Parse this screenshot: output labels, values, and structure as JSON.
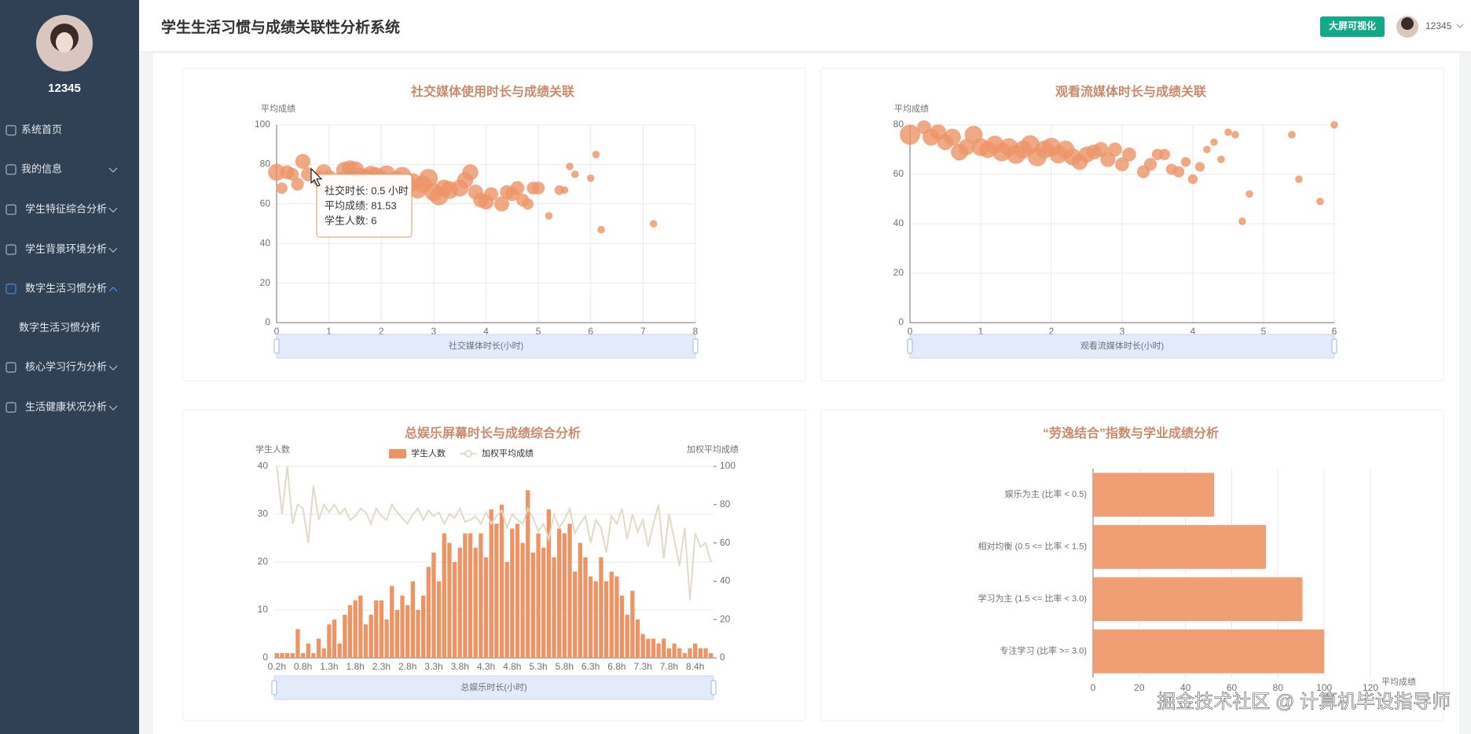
{
  "sidebar": {
    "username": "12345",
    "menu": [
      "系统首页",
      "我的信息",
      "学生特征综合分析",
      "学生背景环境分析",
      "数字生活习惯分析",
      "核心学习行为分析",
      "生活健康状况分析"
    ],
    "submenu": "数字生活习惯分析"
  },
  "header": {
    "title": "学生生活习惯与成绩关联性分析系统",
    "button": "大屏可视化",
    "username": "12345"
  },
  "watermark": "掘金技术社区 @ 计算机毕设指导师",
  "chart_data": [
    {
      "type": "scatter",
      "title": "社交媒体使用时长与成绩关联",
      "y_label": "平均成绩",
      "x_label": "社交媒体时长(小时)",
      "color": "#ec9466",
      "grid": true,
      "xlim": [
        0,
        8
      ],
      "xticks": [
        0,
        1,
        2,
        3,
        4,
        5,
        6,
        7,
        8
      ],
      "ylim": [
        0,
        100
      ],
      "yticks": [
        0,
        20,
        40,
        60,
        80,
        100
      ],
      "x": [
        0,
        0.1,
        0.2,
        0.3,
        0.4,
        0.5,
        0.6,
        0.8,
        0.9,
        1.0,
        1.2,
        1.3,
        1.4,
        1.5,
        1.6,
        1.7,
        1.8,
        1.9,
        2.0,
        2.1,
        2.2,
        2.3,
        2.4,
        2.5,
        2.6,
        2.7,
        2.8,
        2.9,
        3.0,
        3.1,
        3.2,
        3.3,
        3.5,
        3.6,
        3.7,
        3.8,
        3.9,
        4.0,
        4.1,
        4.3,
        4.4,
        4.5,
        4.6,
        4.7,
        4.8,
        4.9,
        5.0,
        5.2,
        5.4,
        5.5,
        5.6,
        5.7,
        6.0,
        6.1,
        6.2,
        7.2
      ],
      "values": [
        76,
        68,
        76,
        75,
        70,
        81.53,
        75,
        73,
        76,
        73,
        72,
        77,
        78,
        77,
        74,
        73,
        75,
        74,
        72,
        75,
        71,
        72,
        74,
        70,
        71,
        67,
        70,
        73,
        66,
        64,
        68,
        67,
        68,
        72,
        76,
        66,
        62,
        61,
        65,
        60,
        66,
        65,
        68,
        62,
        60,
        68,
        68,
        54,
        67,
        67,
        79,
        75,
        73,
        85,
        47,
        50
      ],
      "sizes": [
        8,
        3,
        5,
        4,
        4,
        6,
        5,
        6,
        7,
        7,
        6,
        8,
        7,
        9,
        8,
        9,
        8,
        9,
        10,
        9,
        10,
        9,
        10,
        10,
        9,
        8,
        9,
        10,
        9,
        10,
        8,
        9,
        8,
        7,
        7,
        6,
        6,
        6,
        5,
        6,
        5,
        5,
        5,
        4,
        3,
        4,
        4,
        1,
        2,
        1,
        1,
        1,
        1,
        1,
        1,
        1
      ],
      "tooltip": [
        "社交时长: 0.5 小时",
        "平均成绩: 81.53",
        "学生人数: 6"
      ]
    },
    {
      "type": "scatter",
      "title": "观看流媒体时长与成绩关联",
      "y_label": "平均成绩",
      "x_label": "观看流媒体时长(小时)",
      "color": "#ec9466",
      "grid": true,
      "xlim": [
        0,
        6
      ],
      "xticks": [
        0,
        1,
        2,
        3,
        4,
        5,
        6
      ],
      "ylim": [
        0,
        80
      ],
      "yticks": [
        0,
        20,
        40,
        60,
        80
      ],
      "x": [
        0,
        0.2,
        0.3,
        0.4,
        0.5,
        0.6,
        0.7,
        0.8,
        0.9,
        1.0,
        1.1,
        1.2,
        1.3,
        1.4,
        1.5,
        1.6,
        1.7,
        1.8,
        1.9,
        2.0,
        2.1,
        2.2,
        2.3,
        2.4,
        2.5,
        2.6,
        2.7,
        2.8,
        2.9,
        3.0,
        3.1,
        3.3,
        3.4,
        3.5,
        3.6,
        3.7,
        3.8,
        3.9,
        4.0,
        4.1,
        4.2,
        4.3,
        4.4,
        4.5,
        4.6,
        4.7,
        4.8,
        5.4,
        5.5,
        5.8,
        6.0
      ],
      "values": [
        76,
        79,
        75,
        77,
        73,
        75,
        69,
        71,
        76,
        71,
        70,
        72,
        69,
        71,
        68,
        70,
        72,
        67,
        70,
        71,
        68,
        70,
        67,
        65,
        68,
        69,
        70,
        66,
        70,
        64,
        68,
        61,
        64,
        68,
        68,
        62,
        61,
        65,
        58,
        63,
        70,
        73,
        66,
        77,
        76,
        41,
        52,
        76,
        58,
        49,
        80
      ],
      "sizes": [
        12,
        5,
        8,
        7,
        7,
        8,
        8,
        7,
        9,
        9,
        8,
        9,
        10,
        9,
        10,
        9,
        10,
        10,
        9,
        10,
        9,
        9,
        8,
        7,
        7,
        6,
        6,
        6,
        5,
        5,
        5,
        4,
        4,
        3,
        3,
        3,
        3,
        2,
        2,
        2,
        1,
        1,
        1,
        1,
        1,
        1,
        1,
        1,
        1,
        1,
        1
      ]
    },
    {
      "type": "bar-line",
      "title": "总娱乐屏幕时长与成绩综合分析",
      "y_label": "学生人数",
      "y2_label": "加权平均成绩",
      "x_label": "总娱乐时长(小时)",
      "grid": true,
      "ylim": [
        0,
        40
      ],
      "yticks": [
        0,
        10,
        20,
        30,
        40
      ],
      "y2lim": [
        0,
        100
      ],
      "y2ticks": [
        0,
        20,
        40,
        60,
        80,
        100
      ],
      "categories": [
        "0.2h",
        null,
        null,
        null,
        null,
        "0.8h",
        null,
        null,
        null,
        null,
        "1.3h",
        null,
        null,
        null,
        null,
        "1.8h",
        null,
        null,
        null,
        null,
        "2.3h",
        null,
        null,
        null,
        null,
        "2.8h",
        null,
        null,
        null,
        null,
        "3.3h",
        null,
        null,
        null,
        null,
        "3.8h",
        null,
        null,
        null,
        null,
        "4.3h",
        null,
        null,
        null,
        null,
        "4.8h",
        null,
        null,
        null,
        null,
        "5.3h",
        null,
        null,
        null,
        null,
        "5.8h",
        null,
        null,
        null,
        null,
        "6.3h",
        null,
        null,
        null,
        null,
        "6.8h",
        null,
        null,
        null,
        null,
        "7.3h",
        null,
        null,
        null,
        null,
        "7.8h",
        null,
        null,
        null,
        null,
        "8.4h",
        null,
        null,
        null
      ],
      "series": [
        {
          "name": "学生人数",
          "color": "#ec9466",
          "values": [
            1,
            1,
            1,
            1,
            6,
            1,
            3,
            1,
            4,
            2,
            7,
            8,
            3,
            9,
            11,
            12,
            13,
            7,
            9,
            12,
            12,
            8,
            15,
            10,
            13,
            11,
            16,
            10,
            13,
            19,
            22,
            16,
            26,
            24,
            20,
            23,
            26,
            26,
            23,
            26,
            21,
            31,
            28,
            32,
            20,
            27,
            28,
            24,
            35,
            22,
            26,
            23,
            31,
            21,
            27,
            26,
            28,
            18,
            24,
            21,
            17,
            16,
            21,
            16,
            18,
            17,
            13,
            9,
            14,
            8,
            5,
            4,
            4,
            3,
            4,
            2,
            3,
            2,
            1,
            2,
            3,
            2,
            2,
            1
          ]
        },
        {
          "name": "加权平均成绩",
          "color": "#e2dac6",
          "axis": "y2",
          "values": [
            100,
            75,
            100,
            70,
            80,
            78,
            60,
            90,
            72,
            80,
            76,
            80,
            75,
            78,
            72,
            74,
            78,
            76,
            70,
            78,
            74,
            72,
            80,
            76,
            73,
            70,
            75,
            78,
            72,
            77,
            74,
            76,
            70,
            75,
            73,
            78,
            71,
            72,
            74,
            70,
            76,
            70,
            74,
            77,
            68,
            75,
            72,
            70,
            78,
            73,
            66,
            70,
            62,
            75,
            68,
            72,
            78,
            65,
            70,
            74,
            60,
            72,
            68,
            55,
            74,
            70,
            78,
            62,
            75,
            66,
            72,
            58,
            70,
            80,
            52,
            75,
            62,
            48,
            68,
            30,
            65,
            58,
            60,
            50
          ]
        }
      ]
    },
    {
      "type": "hbar",
      "title": "“劳逸结合”指数与学业成绩分析",
      "x_label": "平均成绩",
      "color": "#f09e74",
      "grid": true,
      "xlim": [
        0,
        120
      ],
      "xticks": [
        0,
        20,
        40,
        60,
        80,
        100,
        120
      ],
      "categories": [
        "娱乐为主 (比率 < 0.5)",
        "相对均衡 (0.5 <= 比率 < 1.5)",
        "学习为主 (1.5 <= 比率 < 3.0)",
        "专注学习 (比率 >= 3.0)"
      ],
      "values": [
        52.4,
        74.8,
        90.6,
        100
      ]
    }
  ]
}
